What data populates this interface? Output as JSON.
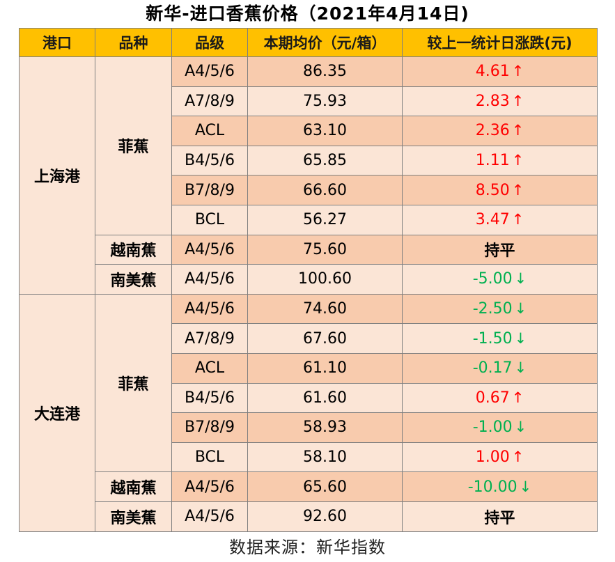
{
  "title": "新华-进口香蕉价格（2021年4月14日)",
  "colors": {
    "header": "#ffc000",
    "row_dark": "#f8cbad",
    "row_light": "#fbe5d6",
    "up": "#ff0000",
    "down": "#00b050"
  },
  "headers": [
    "港口",
    "品种",
    "品级",
    "本期均价（元/箱）",
    "较上一统计日涨跌(元)"
  ],
  "ports": [
    {
      "name": "上海港",
      "groups": [
        {
          "variety": "菲蕉",
          "rows": [
            {
              "grade": "A4/5/6",
              "price": "86.35",
              "change": "4.61",
              "trend": "up",
              "arrow": "↑"
            },
            {
              "grade": "A7/8/9",
              "price": "75.93",
              "change": "2.83",
              "trend": "up",
              "arrow": "↑"
            },
            {
              "grade": "ACL",
              "price": "63.10",
              "change": "2.36",
              "trend": "up",
              "arrow": "↑"
            },
            {
              "grade": "B4/5/6",
              "price": "65.85",
              "change": "1.11",
              "trend": "up",
              "arrow": "↑"
            },
            {
              "grade": "B7/8/9",
              "price": "66.60",
              "change": "8.50",
              "trend": "up",
              "arrow": "↑"
            },
            {
              "grade": "BCL",
              "price": "56.27",
              "change": "3.47",
              "trend": "up",
              "arrow": "↑"
            }
          ]
        },
        {
          "variety": "越南蕉",
          "rows": [
            {
              "grade": "A4/5/6",
              "price": "75.60",
              "change": "持平",
              "trend": "flat",
              "arrow": ""
            }
          ]
        },
        {
          "variety": "南美蕉",
          "rows": [
            {
              "grade": "A4/5/6",
              "price": "100.60",
              "change": "-5.00",
              "trend": "down",
              "arrow": "↓"
            }
          ]
        }
      ]
    },
    {
      "name": "大连港",
      "groups": [
        {
          "variety": "菲蕉",
          "rows": [
            {
              "grade": "A4/5/6",
              "price": "74.60",
              "change": "-2.50",
              "trend": "down",
              "arrow": "↓"
            },
            {
              "grade": "A7/8/9",
              "price": "67.60",
              "change": "-1.50",
              "trend": "down",
              "arrow": "↓"
            },
            {
              "grade": "ACL",
              "price": "61.10",
              "change": "-0.17",
              "trend": "down",
              "arrow": "↓"
            },
            {
              "grade": "B4/5/6",
              "price": "61.60",
              "change": "0.67",
              "trend": "up",
              "arrow": "↑"
            },
            {
              "grade": "B7/8/9",
              "price": "58.93",
              "change": "-1.00",
              "trend": "down",
              "arrow": "↓"
            },
            {
              "grade": "BCL",
              "price": "58.10",
              "change": "1.00",
              "trend": "up",
              "arrow": "↑"
            }
          ]
        },
        {
          "variety": "越南蕉",
          "rows": [
            {
              "grade": "A4/5/6",
              "price": "65.60",
              "change": "-10.00",
              "trend": "down",
              "arrow": "↓"
            }
          ]
        },
        {
          "variety": "南美蕉",
          "rows": [
            {
              "grade": "A4/5/6",
              "price": "92.60",
              "change": "持平",
              "trend": "flat",
              "arrow": ""
            }
          ]
        }
      ]
    }
  ],
  "source": "数据来源：新华指数"
}
